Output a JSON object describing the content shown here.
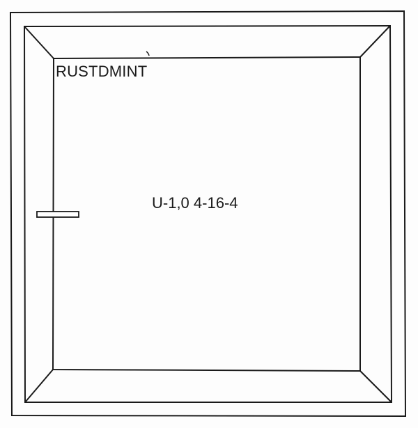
{
  "brand_label": "RUSTDMINT",
  "glazing_spec": "U-1,0 4-16-4"
}
